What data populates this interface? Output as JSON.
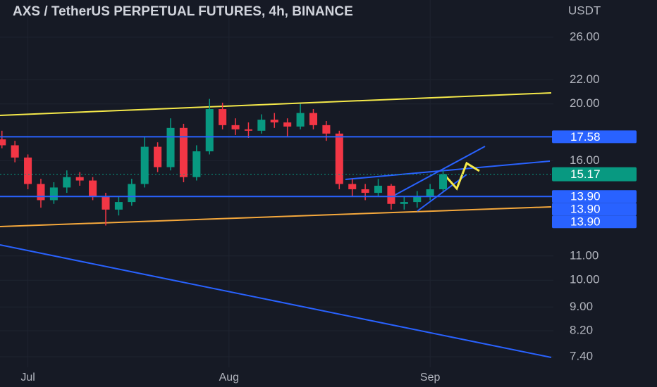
{
  "chart_data": {
    "type": "candlestick",
    "title": "AXS / TetherUS PERPETUAL FUTURES, 4h, BINANCE",
    "currency": "USDT",
    "log_scale": true,
    "grid": true,
    "up_color": "#089981",
    "down_color": "#f23645",
    "x": [
      -4,
      -2,
      0,
      2,
      4,
      6,
      8,
      10,
      12,
      14,
      16,
      18,
      20,
      22,
      24,
      26,
      28,
      30,
      32,
      34,
      36,
      38,
      40,
      42,
      44,
      46,
      48,
      50,
      52,
      54,
      56,
      58,
      60,
      62,
      64
    ],
    "open": [
      17.4,
      17.0,
      16.2,
      14.6,
      13.7,
      14.4,
      15.0,
      14.8,
      13.9,
      13.2,
      13.6,
      14.6,
      16.9,
      15.6,
      18.2,
      15.0,
      16.6,
      19.6,
      18.4,
      18.1,
      18.0,
      18.8,
      18.6,
      18.3,
      19.3,
      18.4,
      17.8,
      14.6,
      14.3,
      14.1,
      14.5,
      13.5,
      13.6,
      13.9,
      14.3
    ],
    "high": [
      18.0,
      17.3,
      16.4,
      14.9,
      14.7,
      15.4,
      15.3,
      15.0,
      14.1,
      13.9,
      14.9,
      17.6,
      17.2,
      18.9,
      18.5,
      17.0,
      20.4,
      20.1,
      18.9,
      18.6,
      19.2,
      19.3,
      18.9,
      20.0,
      19.6,
      18.7,
      18.0,
      14.9,
      14.6,
      14.9,
      14.6,
      13.9,
      14.2,
      14.6,
      15.4
    ],
    "low": [
      16.8,
      15.9,
      14.3,
      13.3,
      13.5,
      14.1,
      14.5,
      13.7,
      12.4,
      12.9,
      13.4,
      14.4,
      15.3,
      15.4,
      14.7,
      14.8,
      16.4,
      18.1,
      17.7,
      17.5,
      17.8,
      18.2,
      17.6,
      18.1,
      18.1,
      17.3,
      14.3,
      13.9,
      13.7,
      13.9,
      13.2,
      13.2,
      13.3,
      13.7,
      14.2
    ],
    "close": [
      17.0,
      16.2,
      14.6,
      13.7,
      14.4,
      15.0,
      14.8,
      13.9,
      13.2,
      13.6,
      14.6,
      16.9,
      15.6,
      18.2,
      15.0,
      16.6,
      19.6,
      18.4,
      18.1,
      18.0,
      18.8,
      18.6,
      18.3,
      19.3,
      18.4,
      17.8,
      14.6,
      14.3,
      14.1,
      14.5,
      13.5,
      13.6,
      13.9,
      14.3,
      15.17
    ],
    "xlim": [
      -4.3,
      81
    ],
    "xticks": [
      {
        "value": 0,
        "label": "Jul"
      },
      {
        "value": 31,
        "label": "Aug"
      },
      {
        "value": 62,
        "label": "Sep"
      }
    ],
    "ylim": [
      7.1,
      30.1
    ],
    "yticks": [
      {
        "value": 26,
        "label": "26.00"
      },
      {
        "value": 22,
        "label": "22.00"
      },
      {
        "value": 20,
        "label": "20.00"
      },
      {
        "value": 16,
        "label": "16.00"
      },
      {
        "value": 11,
        "label": "11.00"
      },
      {
        "value": 10,
        "label": "10.00"
      },
      {
        "value": 9,
        "label": "9.00"
      },
      {
        "value": 8.2,
        "label": "8.20"
      },
      {
        "value": 7.4,
        "label": "7.40"
      }
    ],
    "price_lines": [
      {
        "value": 17.58,
        "label": "17.58"
      },
      {
        "value": 13.9,
        "label": "13.90"
      },
      {
        "value": 13.9,
        "label": "13.90"
      },
      {
        "value": 13.9,
        "label": "13.90"
      }
    ],
    "last_price": {
      "value": 15.17,
      "label": "15.17"
    }
  }
}
